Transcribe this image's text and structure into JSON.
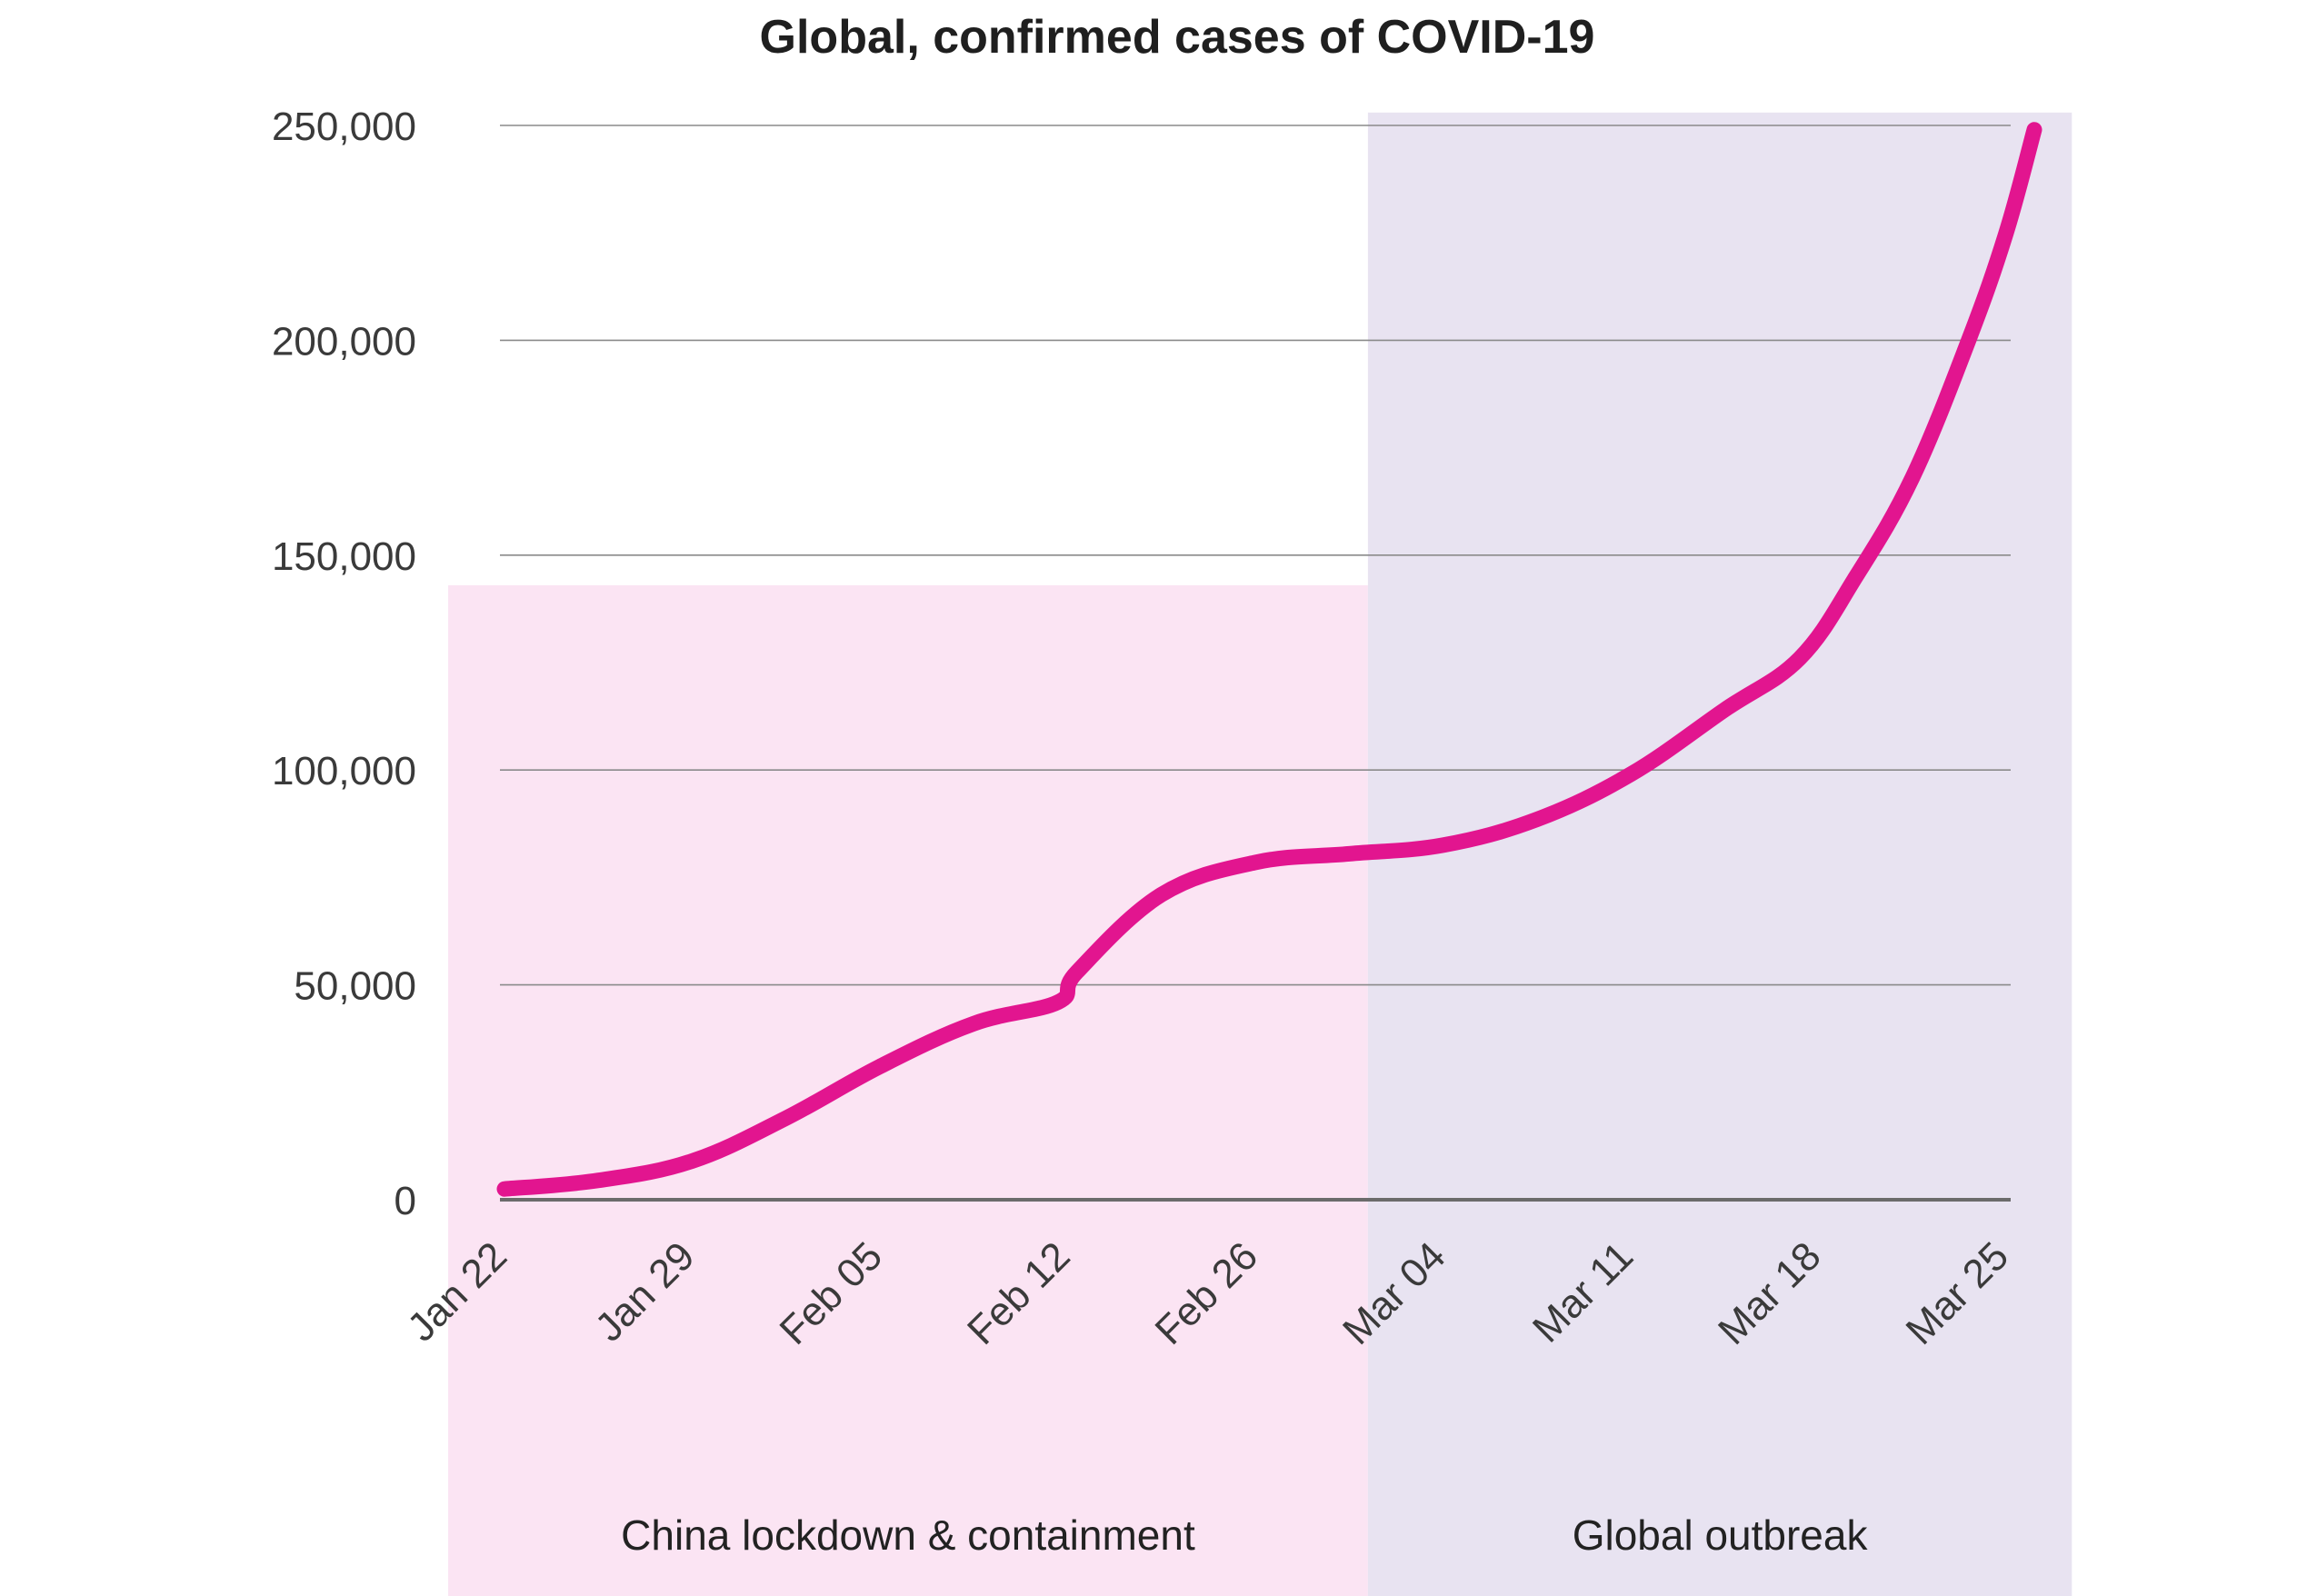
{
  "chart_data": {
    "type": "line",
    "title": "Global, confirmed cases of COVID-19",
    "xlabel": "",
    "ylabel": "",
    "ylim": [
      0,
      250000
    ],
    "yticks": [
      0,
      50000,
      100000,
      150000,
      200000,
      250000
    ],
    "ytick_labels": [
      "0",
      "50,000",
      "100,000",
      "150,000",
      "200,000",
      "250,000"
    ],
    "xtick_labels": [
      "Jan 22",
      "Jan 29",
      "Feb 05",
      "Feb 12",
      "Feb 26",
      "Mar 04",
      "Mar 11",
      "Mar 18",
      "Mar 25"
    ],
    "grid": true,
    "series": [
      {
        "name": "",
        "color": "#e2158f",
        "points": [
          {
            "x": 0.0,
            "y": 2500
          },
          {
            "x": 0.5,
            "y": 4500
          },
          {
            "x": 1.0,
            "y": 9000
          },
          {
            "x": 1.5,
            "y": 19000
          },
          {
            "x": 2.0,
            "y": 31000
          },
          {
            "x": 2.5,
            "y": 41000
          },
          {
            "x": 2.95,
            "y": 46000
          },
          {
            "x": 3.05,
            "y": 53000
          },
          {
            "x": 3.5,
            "y": 71000
          },
          {
            "x": 4.0,
            "y": 78500
          },
          {
            "x": 4.5,
            "y": 80500
          },
          {
            "x": 5.0,
            "y": 82500
          },
          {
            "x": 5.5,
            "y": 88500
          },
          {
            "x": 6.0,
            "y": 99000
          },
          {
            "x": 6.5,
            "y": 114000
          },
          {
            "x": 6.9,
            "y": 126000
          },
          {
            "x": 7.2,
            "y": 145000
          },
          {
            "x": 7.5,
            "y": 168000
          },
          {
            "x": 7.8,
            "y": 200000
          },
          {
            "x": 8.0,
            "y": 225000
          },
          {
            "x": 8.15,
            "y": 249000
          }
        ]
      }
    ],
    "regions": [
      {
        "label": "China lockdown & containment",
        "color": "#fbe4f3",
        "x_start": -0.3,
        "x_end": 4.6,
        "y_top": 143000
      },
      {
        "label": "Global outbreak",
        "color": "#e8e3f1",
        "x_start": 4.6,
        "x_end": 8.35,
        "y_top": 253000
      }
    ]
  }
}
